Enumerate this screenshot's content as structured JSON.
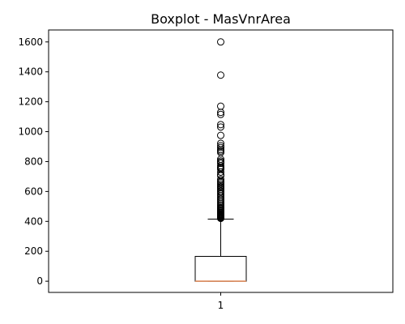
{
  "chart_data": {
    "type": "boxplot",
    "title": "Boxplot - MasVnrArea",
    "xlabel": "",
    "ylabel": "",
    "categories": [
      "1"
    ],
    "ylim": [
      -75,
      1680
    ],
    "yticks": [
      0,
      200,
      400,
      600,
      800,
      1000,
      1200,
      1400,
      1600
    ],
    "grid": false,
    "box": {
      "q1": 0,
      "median": 0,
      "q3": 166,
      "whisker_low": 0,
      "whisker_high": 415
    },
    "outliers": [
      420,
      423,
      426,
      430,
      435,
      438,
      442,
      446,
      450,
      455,
      460,
      466,
      472,
      478,
      485,
      492,
      500,
      510,
      520,
      530,
      541,
      550,
      562,
      573,
      584,
      595,
      604,
      615,
      625,
      632,
      640,
      650,
      660,
      668,
      680,
      705,
      712,
      730,
      748,
      756,
      762,
      772,
      788,
      796,
      804,
      816,
      860,
      870,
      880,
      894,
      906,
      922,
      975,
      1031,
      1047,
      1115,
      1129,
      1170,
      1378,
      1600
    ],
    "colors": {
      "box": "#000000",
      "median": "#dd8452",
      "outlier": "#000000"
    }
  }
}
